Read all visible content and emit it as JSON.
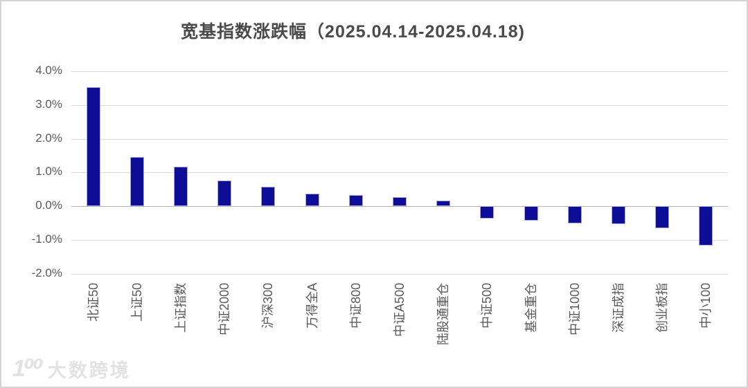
{
  "title": "宽基指数涨跌幅（2025.04.14-2025.04.18)",
  "watermark": {
    "logo": "1⁰⁰",
    "text": "大数跨境"
  },
  "chart_data": {
    "type": "bar",
    "title": "宽基指数涨跌幅（2025.04.14-2025.04.18)",
    "categories": [
      "北证50",
      "上证50",
      "上证指数",
      "中证2000",
      "沪深300",
      "万得全A",
      "中证800",
      "中证A500",
      "陆股通重仓",
      "中证500",
      "基金重仓",
      "中证1000",
      "深证成指",
      "创业板指",
      "中小100"
    ],
    "values": [
      3.52,
      1.46,
      1.17,
      0.75,
      0.58,
      0.38,
      0.33,
      0.27,
      0.17,
      -0.36,
      -0.42,
      -0.51,
      -0.53,
      -0.65,
      -1.17
    ],
    "unit": "%",
    "xlabel": "",
    "ylabel": "",
    "ylim": [
      -2.0,
      4.0
    ],
    "ytick_step": 1.0,
    "ytick_labels": [
      "4.0%",
      "3.0%",
      "2.0%",
      "1.0%",
      "0.0%",
      "-1.0%",
      "-2.0%"
    ],
    "grid": true,
    "legend": "none",
    "bar_color": "#0d0d96",
    "bar_border_color": "#a9a9dc",
    "gridline_color": "#d9d9d9",
    "zero_line_color": "#b3b3b3",
    "axis_text_color": "#595959",
    "title_color": "#4a4a4a"
  }
}
